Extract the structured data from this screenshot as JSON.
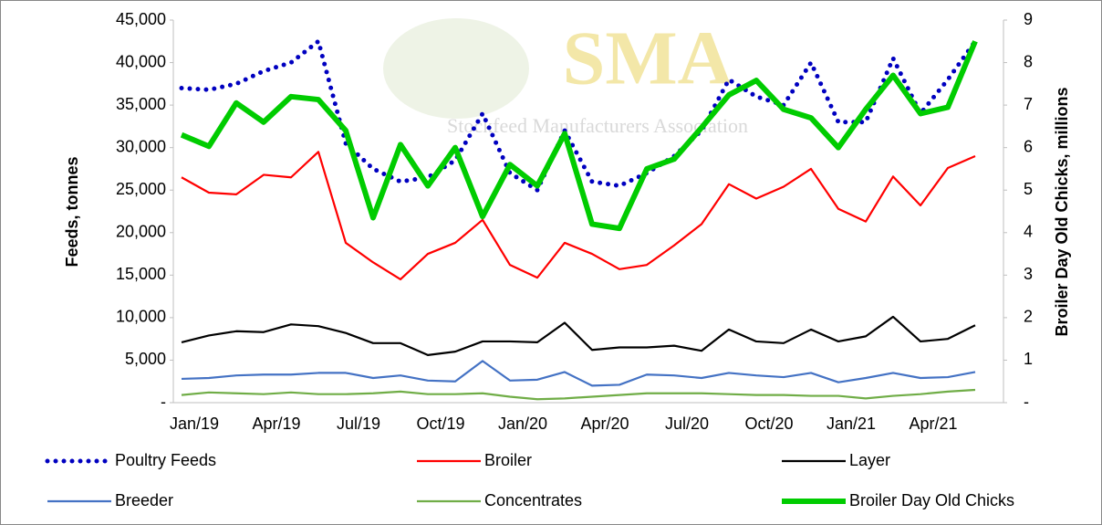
{
  "chart_data": {
    "type": "line",
    "watermark": {
      "title": "SMA",
      "subtitle": "Stockfeed Manufacturers Association"
    },
    "y_label": "Feeds, tonnes",
    "y2_label": "Broiler Day Old Chicks, millions",
    "categories": [
      "Jan/19",
      null,
      null,
      "Apr/19",
      null,
      null,
      "Jul/19",
      null,
      null,
      "Oct/19",
      null,
      null,
      "Jan/20",
      null,
      null,
      "Apr/20",
      null,
      null,
      "Jul/20",
      null,
      null,
      "Oct/20",
      null,
      null,
      "Jan/21",
      null,
      null,
      "Apr/21",
      null,
      null
    ],
    "ylim": [
      0,
      45000
    ],
    "yticks": [
      {
        "value": 0,
        "label": "-"
      },
      {
        "value": 5000,
        "label": "5,000"
      },
      {
        "value": 10000,
        "label": "10,000"
      },
      {
        "value": 15000,
        "label": "15,000"
      },
      {
        "value": 20000,
        "label": "20,000"
      },
      {
        "value": 25000,
        "label": "25,000"
      },
      {
        "value": 30000,
        "label": "30,000"
      },
      {
        "value": 35000,
        "label": "35,000"
      },
      {
        "value": 40000,
        "label": "40,000"
      },
      {
        "value": 45000,
        "label": "45,000"
      }
    ],
    "y2lim": [
      0,
      9
    ],
    "y2ticks": [
      {
        "value": 0,
        "label": "-"
      },
      1,
      2,
      3,
      4,
      5,
      6,
      7,
      8,
      9
    ],
    "grid": false,
    "legend": "bottom",
    "series": [
      {
        "name": "Poultry Feeds",
        "color": "#0000c0",
        "line_style": "dotted",
        "values": [
          37000,
          36800,
          37500,
          39000,
          40000,
          42500,
          30500,
          27500,
          26000,
          26500,
          28500,
          34000,
          27000,
          25000,
          32000,
          26000,
          25500,
          27000,
          29000,
          32000,
          38000,
          36000,
          35000,
          40000,
          33000,
          33000,
          40500,
          34000,
          38000,
          42500
        ]
      },
      {
        "name": "Broiler",
        "color": "#ff0000",
        "line_style": "solid",
        "values": [
          26500,
          24700,
          24500,
          26800,
          26500,
          29500,
          18800,
          16500,
          14500,
          17500,
          18800,
          21500,
          16200,
          14700,
          18800,
          17500,
          15700,
          16200,
          18500,
          21000,
          25700,
          24000,
          25400,
          27500,
          22800,
          21300,
          26600,
          23200,
          27600,
          29000
        ]
      },
      {
        "name": "Layer",
        "color": "#000000",
        "line_style": "solid",
        "values": [
          7100,
          7900,
          8400,
          8300,
          9200,
          9000,
          8200,
          7000,
          7000,
          5600,
          6000,
          7200,
          7200,
          7100,
          9400,
          6200,
          6500,
          6500,
          6700,
          6100,
          8600,
          7200,
          7000,
          8600,
          7200,
          7800,
          10100,
          7200,
          7500,
          9100
        ]
      },
      {
        "name": "Breeder",
        "color": "#4472c4",
        "line_style": "solid",
        "values": [
          2800,
          2900,
          3200,
          3300,
          3300,
          3500,
          3500,
          2900,
          3200,
          2600,
          2500,
          4900,
          2600,
          2700,
          3600,
          2000,
          2100,
          3300,
          3200,
          2900,
          3500,
          3200,
          3000,
          3500,
          2400,
          2900,
          3500,
          2900,
          3000,
          3600
        ]
      },
      {
        "name": "Concentrates",
        "color": "#70ad47",
        "line_style": "solid",
        "values": [
          900,
          1200,
          1100,
          1000,
          1200,
          1000,
          1000,
          1100,
          1300,
          1000,
          1000,
          1100,
          700,
          400,
          500,
          700,
          900,
          1100,
          1100,
          1100,
          1000,
          900,
          900,
          800,
          800,
          500,
          800,
          1000,
          1300,
          1500
        ]
      },
      {
        "name": "Broiler Day Old Chicks",
        "color": "#00cc00",
        "line_style": "thick",
        "axis": "y2",
        "values": [
          6.3,
          6.03,
          7.05,
          6.6,
          7.2,
          7.13,
          6.4,
          4.35,
          6.07,
          5.1,
          6.0,
          4.38,
          5.6,
          5.1,
          6.33,
          4.2,
          4.1,
          5.5,
          5.73,
          6.47,
          7.24,
          7.58,
          6.9,
          6.7,
          6.0,
          6.9,
          7.7,
          6.8,
          6.95,
          8.5
        ]
      }
    ]
  }
}
